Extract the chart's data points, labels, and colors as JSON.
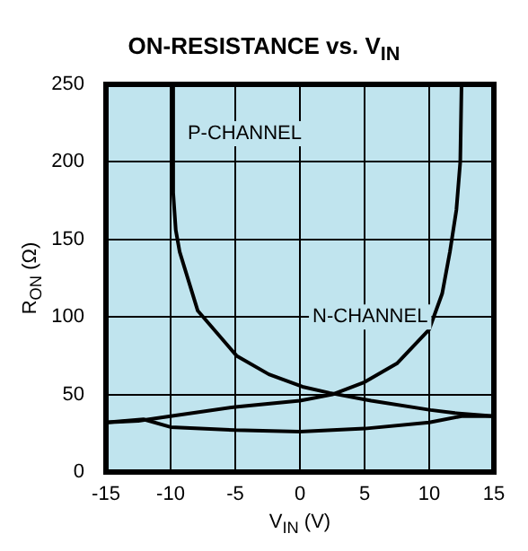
{
  "chart_data": {
    "type": "line",
    "title": "ON-RESISTANCE vs. V$_{IN}$",
    "xlabel": "V$_{IN}$ (V)",
    "ylabel": "R$_{ON}$ (Ω)",
    "xlim": [
      -15,
      15
    ],
    "ylim": [
      0,
      250
    ],
    "xticks": [
      -15,
      -10,
      -5,
      0,
      5,
      10,
      15
    ],
    "yticks": [
      0,
      50,
      100,
      150,
      200,
      250
    ],
    "grid": true,
    "legend": false,
    "series": [
      {
        "name": "P-CHANNEL",
        "color": "#000000",
        "x": [
          -9.8,
          -9.8,
          -9.6,
          -9.3,
          -7.9,
          -4.9,
          -2.4,
          0.2,
          2.3,
          5.5,
          10.1,
          12,
          15
        ],
        "values": [
          250,
          180,
          156,
          142,
          104,
          75,
          63,
          55,
          51,
          46,
          40,
          38,
          36
        ]
      },
      {
        "name": "N-CHANNEL",
        "color": "#000000",
        "x": [
          -15,
          -12.5,
          -10,
          -5,
          0,
          2.5,
          5,
          7.5,
          10,
          11,
          11.6,
          12.1,
          12.4,
          12.5
        ],
        "values": [
          32,
          33,
          36,
          42,
          46,
          50,
          58,
          70,
          92,
          115,
          142,
          169,
          200,
          250
        ]
      },
      {
        "color": "#000000",
        "x": [
          -15,
          -12.1,
          -10,
          -5,
          0,
          5,
          10,
          12.5,
          15
        ],
        "values": [
          32,
          34,
          29,
          27,
          26,
          28,
          32,
          36,
          36
        ]
      }
    ]
  }
}
